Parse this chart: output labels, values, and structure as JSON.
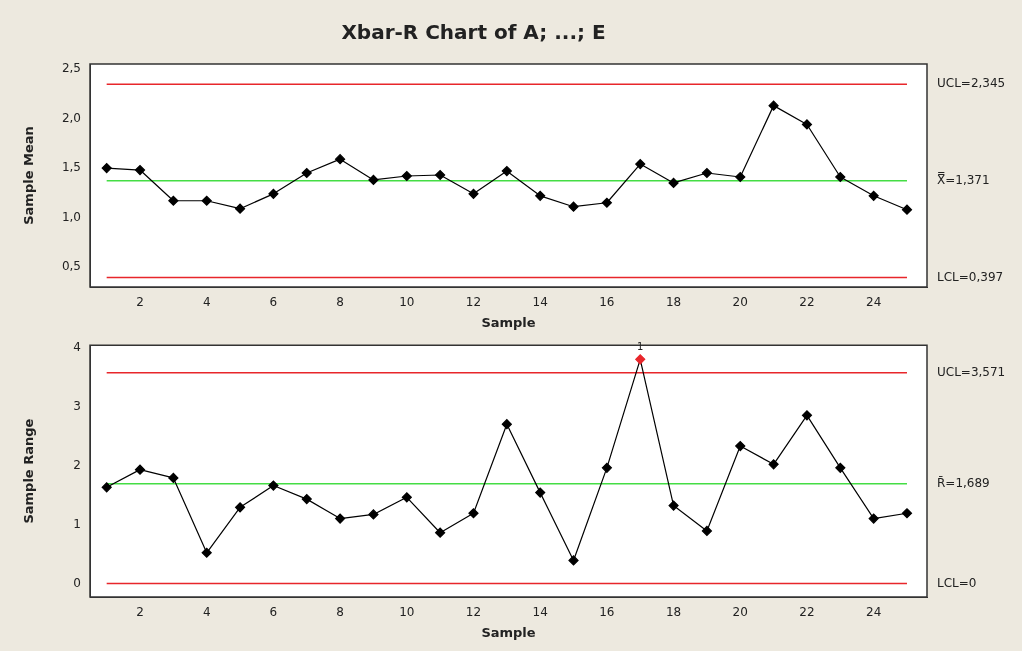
{
  "chart_data": [
    {
      "type": "line",
      "title": "Xbar-R Chart of A; ...; E",
      "xlabel": "Sample",
      "ylabel": "Sample Mean",
      "x": [
        1,
        2,
        3,
        4,
        5,
        6,
        7,
        8,
        9,
        10,
        11,
        12,
        13,
        14,
        15,
        16,
        17,
        18,
        19,
        20,
        21,
        22,
        23,
        24,
        25
      ],
      "series": [
        {
          "type": "line",
          "color": "#000000",
          "marker": "diamond",
          "line_style": "solid",
          "values": [
            1.5,
            1.48,
            1.17,
            1.17,
            1.09,
            1.24,
            1.45,
            1.59,
            1.38,
            1.42,
            1.43,
            1.24,
            1.47,
            1.22,
            1.11,
            1.15,
            1.54,
            1.35,
            1.45,
            1.41,
            2.13,
            1.94,
            1.41,
            1.22,
            1.08
          ]
        }
      ],
      "xlim": [
        0.5,
        25.6
      ],
      "xticks": [
        2,
        4,
        6,
        8,
        10,
        12,
        14,
        16,
        18,
        20,
        22,
        24
      ],
      "ylim": [
        0.3,
        2.55
      ],
      "yticks": [
        {
          "value": 0.5,
          "label": "0,5"
        },
        {
          "value": 1.0,
          "label": "1,0"
        },
        {
          "value": 1.5,
          "label": "1,5"
        },
        {
          "value": 2.0,
          "label": "2,0"
        },
        {
          "value": 2.5,
          "label": "2,5"
        }
      ],
      "grid": false,
      "ref_lines": [
        {
          "axis": "y",
          "value": 2.345,
          "label": "UCL=2,345",
          "color": "#e8262b"
        },
        {
          "axis": "y",
          "value": 1.371,
          "label": "X̿=1,371",
          "color": "#44dd44"
        },
        {
          "axis": "y",
          "value": 0.397,
          "label": "LCL=0,397",
          "color": "#e8262b"
        }
      ]
    },
    {
      "type": "line",
      "xlabel": "Sample",
      "ylabel": "Sample Range",
      "x": [
        1,
        2,
        3,
        4,
        5,
        6,
        7,
        8,
        9,
        10,
        11,
        12,
        13,
        14,
        15,
        16,
        17,
        18,
        19,
        20,
        21,
        22,
        23,
        24,
        25
      ],
      "series": [
        {
          "type": "line",
          "color": "#000000",
          "colors": [
            "#000000",
            "#000000",
            "#000000",
            "#000000",
            "#000000",
            "#000000",
            "#000000",
            "#000000",
            "#000000",
            "#000000",
            "#000000",
            "#000000",
            "#000000",
            "#000000",
            "#000000",
            "#000000",
            "#e8262b",
            "#000000",
            "#000000",
            "#000000",
            "#000000",
            "#000000",
            "#000000",
            "#000000",
            "#000000"
          ],
          "marker": "diamond",
          "line_style": "solid",
          "values": [
            1.63,
            1.93,
            1.79,
            0.52,
            1.29,
            1.66,
            1.43,
            1.1,
            1.17,
            1.46,
            0.86,
            1.19,
            2.7,
            1.54,
            0.39,
            1.96,
            3.8,
            1.32,
            0.89,
            2.33,
            2.02,
            2.85,
            1.96,
            1.1,
            1.19
          ]
        }
      ],
      "xlim": [
        0.5,
        25.6
      ],
      "xticks": [
        2,
        4,
        6,
        8,
        10,
        12,
        14,
        16,
        18,
        20,
        22,
        24
      ],
      "ylim": [
        -0.23,
        4.04
      ],
      "yticks": [
        0,
        1,
        2,
        3,
        4
      ],
      "grid": false,
      "ref_lines": [
        {
          "axis": "y",
          "value": 3.571,
          "label": "UCL=3,571",
          "color": "#e8262b"
        },
        {
          "axis": "y",
          "value": 1.689,
          "label": "R̄=1,689",
          "color": "#44dd44"
        },
        {
          "axis": "y",
          "value": 0,
          "label": "LCL=0",
          "color": "#e8262b"
        }
      ],
      "annotations": [
        {
          "text": "1",
          "x": 17,
          "y": 3.8
        }
      ]
    }
  ]
}
